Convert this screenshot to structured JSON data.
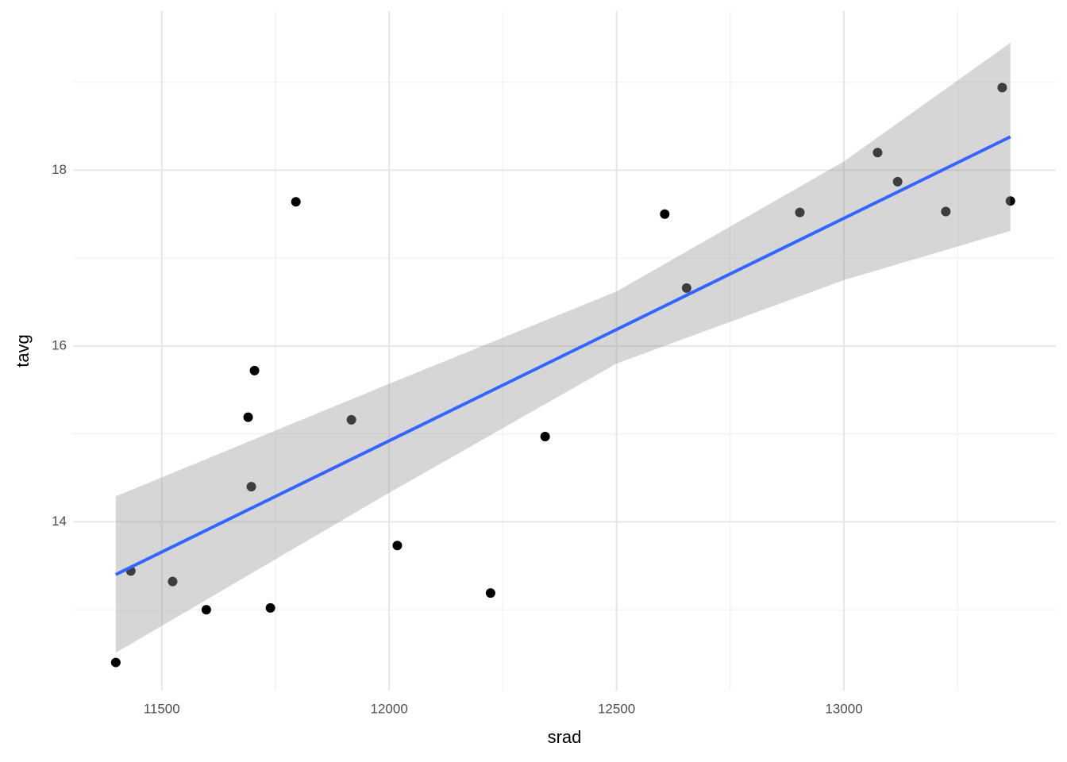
{
  "chart_data": {
    "type": "scatter",
    "x_label": "srad",
    "y_label": "tavg",
    "xlim": [
      11305,
      13466
    ],
    "ylim": [
      12.08,
      19.81
    ],
    "xticks": [
      11500,
      12000,
      12500,
      13000
    ],
    "yticks": [
      14,
      16,
      18
    ],
    "x_minor_ticks": [
      11750,
      12250,
      12750,
      13250
    ],
    "y_minor_ticks": [
      13,
      15,
      17,
      19
    ],
    "grid": true,
    "point_color": "#000000",
    "x": [
      11399,
      11432,
      11524,
      11598,
      11690,
      11697,
      11704,
      11739,
      11795,
      11917,
      12018,
      12223,
      12343,
      12606,
      12654,
      12903,
      13074,
      13118,
      13224,
      13348,
      13366
    ],
    "values": [
      12.4,
      13.44,
      13.32,
      13.0,
      15.19,
      14.4,
      15.72,
      13.02,
      17.64,
      15.16,
      13.73,
      13.19,
      14.97,
      17.5,
      16.66,
      17.52,
      18.2,
      17.87,
      17.53,
      18.94,
      17.65
    ],
    "fit": {
      "color": "#3366ff",
      "x": [
        11399,
        13366
      ],
      "values": [
        13.4,
        18.38
      ]
    },
    "band": {
      "color": "#999999",
      "x": [
        11399,
        12000,
        12500,
        13000,
        13366
      ],
      "upper": [
        14.29,
        15.57,
        16.62,
        18.1,
        19.45
      ],
      "lower": [
        12.51,
        14.33,
        15.8,
        16.75,
        17.31
      ]
    }
  }
}
